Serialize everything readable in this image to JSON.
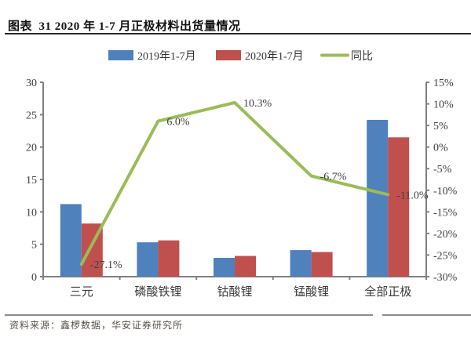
{
  "header": {
    "title": "图表  31 2020 年 1-7 月正极材料出货量情况"
  },
  "legend": [
    {
      "label": "2019年1-7月",
      "type": "bar",
      "color": "#4F81BD"
    },
    {
      "label": "2020年1-7月",
      "type": "bar",
      "color": "#C0504D"
    },
    {
      "label": "同比",
      "type": "line",
      "color": "#9BBB59"
    }
  ],
  "chart_data": {
    "type": "bar+line",
    "title": "2020 年 1-7 月正极材料出货量情况",
    "categories": [
      "三元",
      "磷酸铁锂",
      "钴酸锂",
      "锰酸锂",
      "全部正极"
    ],
    "series": [
      {
        "name": "2019年1-7月",
        "type": "bar",
        "axis": "left",
        "color": "#4F81BD",
        "values": [
          11.2,
          5.3,
          2.9,
          4.1,
          24.2
        ]
      },
      {
        "name": "2020年1-7月",
        "type": "bar",
        "axis": "left",
        "color": "#C0504D",
        "values": [
          8.2,
          5.6,
          3.2,
          3.8,
          21.5
        ]
      },
      {
        "name": "同比",
        "type": "line",
        "axis": "right",
        "color": "#9BBB59",
        "values": [
          -27.1,
          6.0,
          10.3,
          -6.7,
          -11.0
        ],
        "labels": [
          "-27.1%",
          "6.0%",
          "10.3%",
          "-6.7%",
          "-11.0%"
        ]
      }
    ],
    "left_axis": {
      "min": 0,
      "max": 30,
      "step": 5,
      "ticks": [
        "0",
        "5",
        "10",
        "15",
        "20",
        "25",
        "30"
      ]
    },
    "right_axis": {
      "min": -30,
      "max": 15,
      "step": 5,
      "ticks": [
        "-30%",
        "-25%",
        "-20%",
        "-15%",
        "-10%",
        "-5%",
        "0%",
        "5%",
        "10%",
        "15%"
      ]
    },
    "legend_position": "top",
    "grid": false,
    "colors": {
      "bar_2019": "#4F81BD",
      "bar_2020": "#C0504D",
      "line_yoy": "#9BBB59",
      "axis": "#808080",
      "tick_text": "#404040"
    }
  },
  "footer": {
    "source": "资料来源：鑫椤数据，华安证券研究所"
  }
}
